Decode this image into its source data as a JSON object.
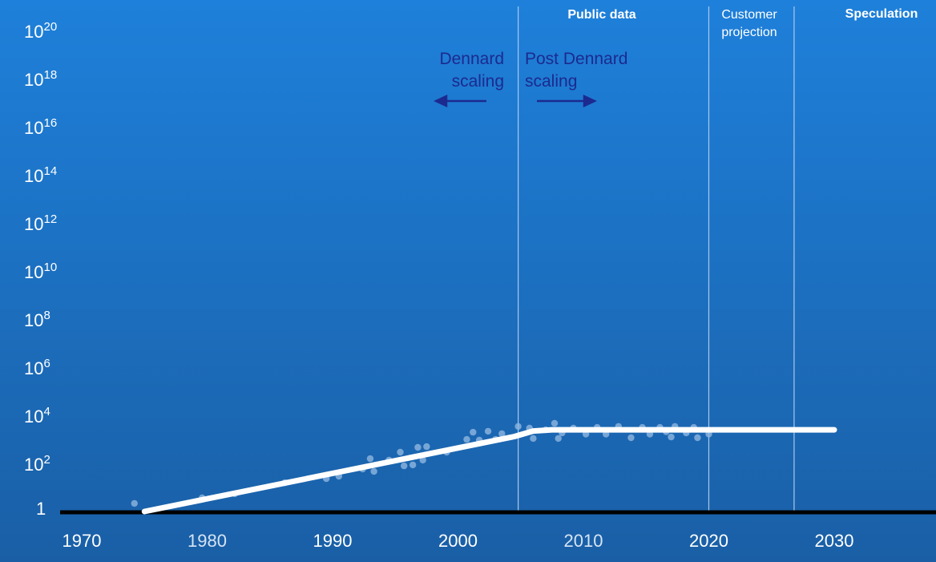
{
  "chart_data": {
    "type": "scatter",
    "title": "",
    "xlabel": "",
    "ylabel": "",
    "y_scale": "log10",
    "xlim": [
      1970,
      2038
    ],
    "ylim_log10": [
      0,
      20
    ],
    "x_ticks": [
      {
        "value": 1970,
        "label": "1970",
        "dim": false
      },
      {
        "value": 1980,
        "label": "1980",
        "dim": true
      },
      {
        "value": 1990,
        "label": "1990",
        "dim": false
      },
      {
        "value": 2000,
        "label": "2000",
        "dim": false
      },
      {
        "value": 2010,
        "label": "2010",
        "dim": true
      },
      {
        "value": 2020,
        "label": "2020",
        "dim": false
      },
      {
        "value": 2030,
        "label": "2030",
        "dim": false
      }
    ],
    "y_ticks": [
      {
        "log": 0,
        "base": "1",
        "exp": ""
      },
      {
        "log": 2,
        "base": "10",
        "exp": "2"
      },
      {
        "log": 4,
        "base": "10",
        "exp": "4"
      },
      {
        "log": 6,
        "base": "10",
        "exp": "6"
      },
      {
        "log": 8,
        "base": "10",
        "exp": "8"
      },
      {
        "log": 10,
        "base": "10",
        "exp": "10"
      },
      {
        "log": 12,
        "base": "10",
        "exp": "12"
      },
      {
        "log": 14,
        "base": "10",
        "exp": "14"
      },
      {
        "log": 16,
        "base": "10",
        "exp": "16"
      },
      {
        "log": 18,
        "base": "10",
        "exp": "18"
      },
      {
        "log": 20,
        "base": "10",
        "exp": "20"
      }
    ],
    "region_dividers": [
      2004.8,
      2020,
      2026.8
    ],
    "regions": [
      {
        "label": "Public data",
        "bold": true
      },
      {
        "label": "Customer projection",
        "lines": [
          "Customer",
          "projection"
        ],
        "bold": false
      },
      {
        "label": "Speculation",
        "bold": true
      }
    ],
    "annotations": [
      {
        "lines": [
          "Dennard",
          "scaling"
        ],
        "arrow": "left"
      },
      {
        "lines": [
          "Post Dennard",
          "scaling"
        ],
        "arrow": "right"
      }
    ],
    "trend_line": [
      [
        1975,
        0
      ],
      [
        2004.5,
        3.35
      ],
      [
        2006,
        3.58
      ],
      [
        2007.5,
        3.63
      ],
      [
        2030,
        3.63
      ]
    ],
    "points_log10": [
      [
        1974.2,
        0.57
      ],
      [
        1979.6,
        0.8
      ],
      [
        1982.2,
        0.97
      ],
      [
        1986.2,
        1.43
      ],
      [
        1989.5,
        1.6
      ],
      [
        1990.5,
        1.7
      ],
      [
        1992.4,
        2.0
      ],
      [
        1993,
        2.43
      ],
      [
        1993.3,
        1.9
      ],
      [
        1994.5,
        2.37
      ],
      [
        1995.4,
        2.7
      ],
      [
        1995.7,
        2.13
      ],
      [
        1996.4,
        2.17
      ],
      [
        1996.8,
        2.9
      ],
      [
        1997.2,
        2.37
      ],
      [
        1997.5,
        2.93
      ],
      [
        1999.1,
        2.7
      ],
      [
        2000.7,
        3.23
      ],
      [
        2001.2,
        3.53
      ],
      [
        2001.7,
        3.2
      ],
      [
        2002.4,
        3.57
      ],
      [
        2003,
        3.23
      ],
      [
        2003.5,
        3.47
      ],
      [
        2004.8,
        3.77
      ],
      [
        2005.7,
        3.7
      ],
      [
        2006,
        3.27
      ],
      [
        2007,
        3.63
      ],
      [
        2007.7,
        3.9
      ],
      [
        2008,
        3.27
      ],
      [
        2008.3,
        3.5
      ],
      [
        2009.2,
        3.7
      ],
      [
        2010.2,
        3.45
      ],
      [
        2011.1,
        3.73
      ],
      [
        2011.8,
        3.45
      ],
      [
        2012.8,
        3.77
      ],
      [
        2013.8,
        3.3
      ],
      [
        2014.7,
        3.73
      ],
      [
        2015.3,
        3.45
      ],
      [
        2016.1,
        3.73
      ],
      [
        2016.6,
        3.55
      ],
      [
        2017,
        3.33
      ],
      [
        2017.3,
        3.77
      ],
      [
        2018.2,
        3.5
      ],
      [
        2018.8,
        3.73
      ],
      [
        2019.1,
        3.3
      ],
      [
        2020,
        3.45
      ]
    ],
    "colors": {
      "line": "#ffffff",
      "points": "#8fb6e0",
      "axis": "#000000",
      "divider": "#a9c8ec",
      "annotation": "#1c2a8f"
    }
  }
}
